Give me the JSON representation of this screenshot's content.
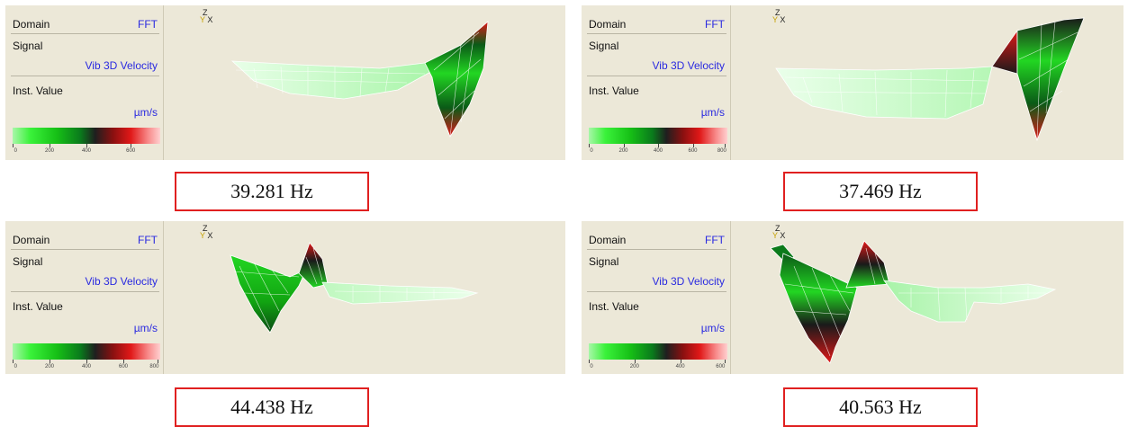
{
  "panels": [
    {
      "domain_label": "Domain",
      "domain_value": "FFT",
      "signal_label": "Signal",
      "signal_value": "Vib 3D Velocity",
      "value_label": "Inst. Value",
      "unit": "µm/s",
      "scale_ticks": [
        "0",
        "200",
        "400",
        "600"
      ],
      "axis": {
        "z": "Z",
        "y": "Y",
        "x": "X"
      },
      "frequency": "39.281 Hz"
    },
    {
      "domain_label": "Domain",
      "domain_value": "FFT",
      "signal_label": "Signal",
      "signal_value": "Vib 3D Velocity",
      "value_label": "Inst. Value",
      "unit": "µm/s",
      "scale_ticks": [
        "0",
        "200",
        "400",
        "600",
        "800"
      ],
      "axis": {
        "z": "Z",
        "y": "Y",
        "x": "X"
      },
      "frequency": "37.469 Hz"
    },
    {
      "domain_label": "Domain",
      "domain_value": "FFT",
      "signal_label": "Signal",
      "signal_value": "Vib 3D Velocity",
      "value_label": "Inst. Value",
      "unit": "µm/s",
      "scale_ticks": [
        "0",
        "200",
        "400",
        "600",
        "800"
      ],
      "axis": {
        "z": "Z",
        "y": "Y",
        "x": "X"
      },
      "frequency": "44.438 Hz"
    },
    {
      "domain_label": "Domain",
      "domain_value": "FFT",
      "signal_label": "Signal",
      "signal_value": "Vib 3D Velocity",
      "value_label": "Inst. Value",
      "unit": "µm/s",
      "scale_ticks": [
        "0",
        "200",
        "400",
        "600"
      ],
      "axis": {
        "z": "Z",
        "y": "Y",
        "x": "X"
      },
      "frequency": "40.563 Hz"
    }
  ],
  "colors": {
    "panel_bg": "#ece8d8",
    "label_blue": "#2a2ae0",
    "frame_red": "#e02020"
  }
}
